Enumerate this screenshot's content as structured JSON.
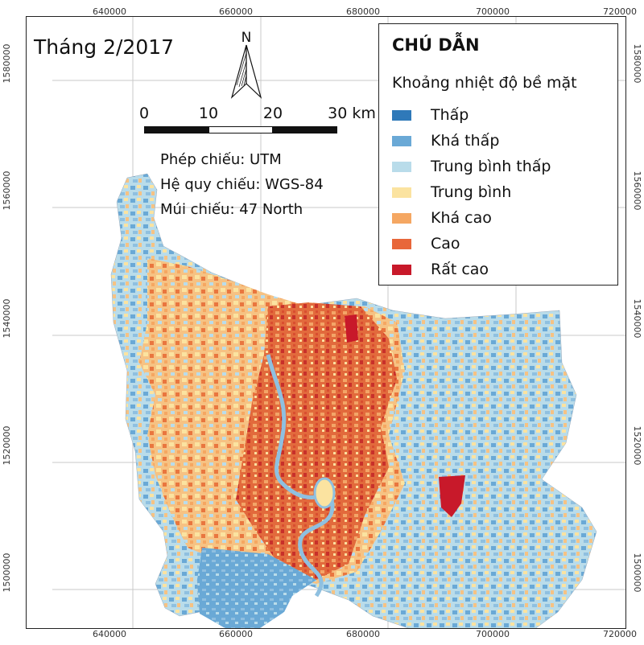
{
  "map": {
    "title": "Tháng 2/2017",
    "north_label": "N",
    "scale_labels": [
      "0",
      "10",
      "20",
      "30 km"
    ],
    "projection": {
      "line1": "Phép chiếu: UTM",
      "line2": "Hệ quy chiếu: WGS-84",
      "line3": "Múi chiếu: 47 North"
    },
    "x_ticks": [
      "640000",
      "660000",
      "680000",
      "700000",
      "720000"
    ],
    "y_ticks": [
      "1580000",
      "1560000",
      "1540000",
      "1520000",
      "1500000"
    ]
  },
  "legend": {
    "title": "CHÚ DẪN",
    "subtitle": "Khoảng nhiệt độ bề mặt",
    "items": [
      {
        "label": "Thấp",
        "color": "#2f79b9"
      },
      {
        "label": "Khá thấp",
        "color": "#6aa9d6"
      },
      {
        "label": "Trung bình thấp",
        "color": "#b9dcea"
      },
      {
        "label": "Trung bình",
        "color": "#fbe3a0"
      },
      {
        "label": "Khá cao",
        "color": "#f5a762"
      },
      {
        "label": "Cao",
        "color": "#e8673a"
      },
      {
        "label": "Rất cao",
        "color": "#c8192a"
      }
    ]
  }
}
